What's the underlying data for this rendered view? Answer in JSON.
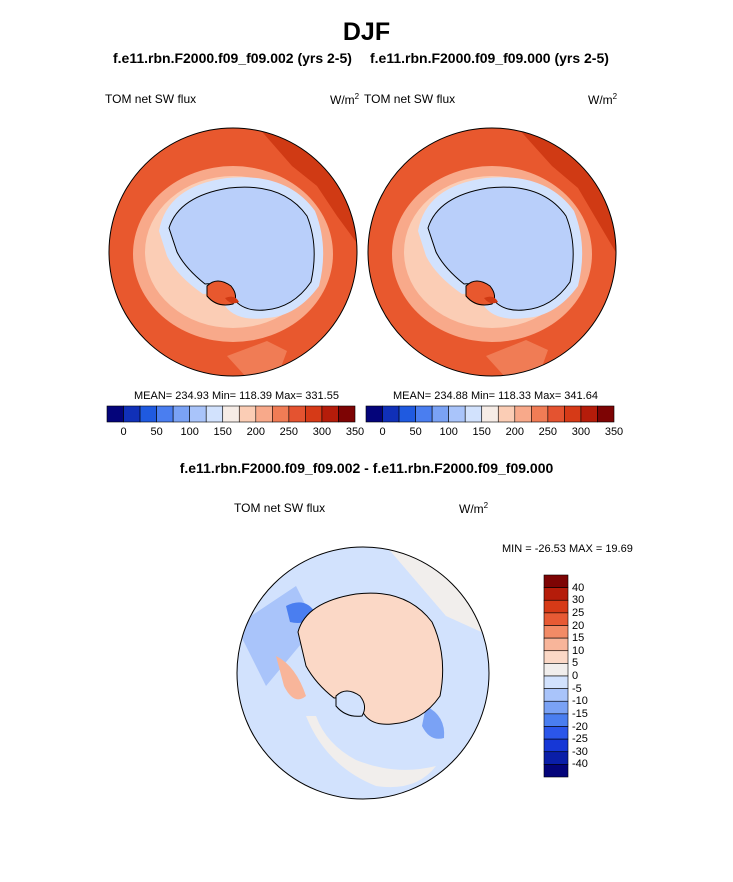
{
  "title": "DJF",
  "panels": [
    {
      "run": "f.e11.rbn.F2000.f09_f09.002 (yrs 2-5)",
      "variable": "TOM net SW flux",
      "units": "W/m",
      "units_exp": "2",
      "stats": "MEAN= 234.93  Min= 118.39  Max= 331.55"
    },
    {
      "run": "f.e11.rbn.F2000.f09_f09.000 (yrs 2-5)",
      "variable": "TOM net SW flux",
      "units": "W/m",
      "units_exp": "2",
      "stats": "MEAN= 234.88  Min= 118.33  Max= 341.64"
    }
  ],
  "difference": {
    "title": "f.e11.rbn.F2000.f09_f09.002 - f.e11.rbn.F2000.f09_f09.000",
    "variable": "TOM net SW flux",
    "units": "W/m",
    "units_exp": "2",
    "minmax": "MIN = -26.53 MAX =  19.69"
  },
  "colors": {
    "abs_palette": [
      "#04047a",
      "#1030b8",
      "#1f5ae0",
      "#4a7ef0",
      "#7aa2f5",
      "#a9c4fa",
      "#d2e2fd",
      "#f6ece6",
      "#fbcdb5",
      "#f8a98a",
      "#f07c55",
      "#e45330",
      "#d63a17",
      "#b51c0a",
      "#7d0404"
    ],
    "diff_palette": [
      "#04047a",
      "#0a1ea8",
      "#1637d6",
      "#2b56ea",
      "#4a7ef0",
      "#7aa2f5",
      "#a9c4fa",
      "#d2e2fd",
      "#f1eeec",
      "#fbd8c6",
      "#f8b59a",
      "#f28b66",
      "#e75a34",
      "#d63a17",
      "#b51c0a",
      "#7d0404"
    ],
    "ice": "#b9cffa",
    "ice_light": "#d4e3fd",
    "ocean": "#e85a30",
    "ocean_dark": "#d03a14"
  },
  "chart_data": [
    {
      "type": "heatmap",
      "projection": "south polar stereographic",
      "title": "TOM net SW flux",
      "subtitle": "f.e11.rbn.F2000.f09_f09.002 (yrs 2-5)",
      "units": "W/m2",
      "mean": 234.93,
      "min": 118.39,
      "max": 331.55,
      "colorbar_ticks": [
        0,
        50,
        100,
        150,
        200,
        250,
        300,
        350
      ],
      "colorbar_levels": 15
    },
    {
      "type": "heatmap",
      "projection": "south polar stereographic",
      "title": "TOM net SW flux",
      "subtitle": "f.e11.rbn.F2000.f09_f09.000 (yrs 2-5)",
      "units": "W/m2",
      "mean": 234.88,
      "min": 118.33,
      "max": 341.64,
      "colorbar_ticks": [
        0,
        50,
        100,
        150,
        200,
        250,
        300,
        350
      ],
      "colorbar_levels": 15
    },
    {
      "type": "heatmap",
      "projection": "south polar stereographic",
      "title": "TOM net SW flux",
      "subtitle": "f.e11.rbn.F2000.f09_f09.002 - f.e11.rbn.F2000.f09_f09.000",
      "units": "W/m2",
      "min": -26.53,
      "max": 19.69,
      "colorbar_ticks": [
        40,
        30,
        25,
        20,
        15,
        10,
        5,
        0,
        -5,
        -10,
        -15,
        -20,
        -25,
        -30,
        -40
      ]
    }
  ]
}
